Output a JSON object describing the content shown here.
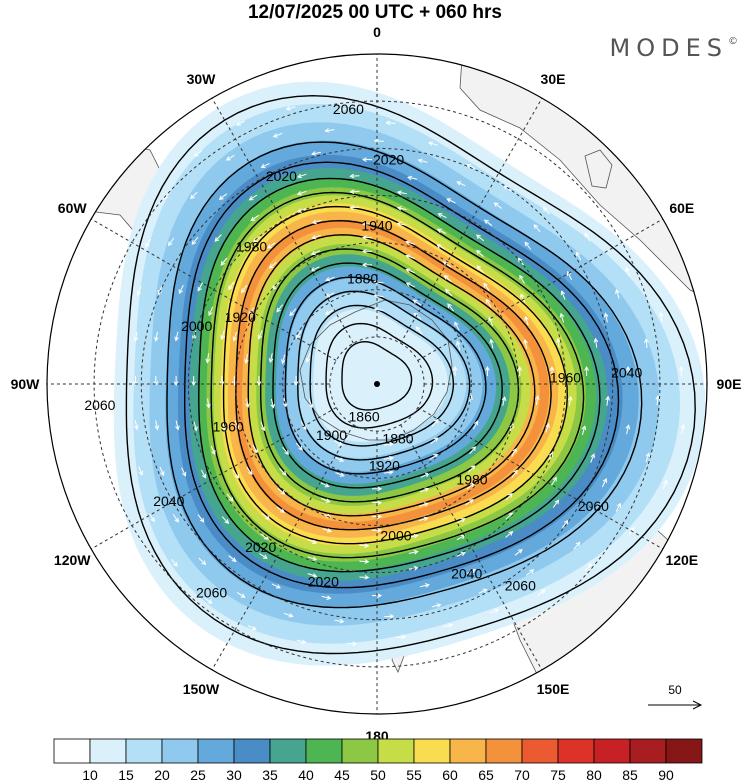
{
  "title": "12/07/2025  00 UTC  + 060 hrs",
  "brand": "MODES",
  "brand_mark": "©",
  "longitude_labels": [
    {
      "text": "0",
      "lon": 0
    },
    {
      "text": "30E",
      "lon": 30
    },
    {
      "text": "60E",
      "lon": 60
    },
    {
      "text": "90E",
      "lon": 90
    },
    {
      "text": "120E",
      "lon": 120
    },
    {
      "text": "150E",
      "lon": 150
    },
    {
      "text": "180",
      "lon": 180
    },
    {
      "text": "150W",
      "lon": -150
    },
    {
      "text": "120W",
      "lon": -120
    },
    {
      "text": "90W",
      "lon": -90
    },
    {
      "text": "60W",
      "lon": -60
    },
    {
      "text": "30W",
      "lon": -30
    }
  ],
  "contour_labels": [
    {
      "text": "2060",
      "lon": -6,
      "lat": -32
    },
    {
      "text": "2020",
      "lon": -25,
      "lat": -42
    },
    {
      "text": "2020",
      "lon": 3,
      "lat": -43
    },
    {
      "text": "1940",
      "lon": 0,
      "lat": -57
    },
    {
      "text": "1980",
      "lon": -43,
      "lat": -51
    },
    {
      "text": "1880",
      "lon": -8,
      "lat": -68
    },
    {
      "text": "2000",
      "lon": -73,
      "lat": -50
    },
    {
      "text": "1920",
      "lon": -65,
      "lat": -58
    },
    {
      "text": "1960",
      "lon": 89,
      "lat": -50
    },
    {
      "text": "2040",
      "lon": 88,
      "lat": -37
    },
    {
      "text": "2060",
      "lon": -95,
      "lat": -31
    },
    {
      "text": "1860",
      "lon": -160,
      "lat": -82
    },
    {
      "text": "1880",
      "lon": 160,
      "lat": -77
    },
    {
      "text": "1960",
      "lon": -107,
      "lat": -57
    },
    {
      "text": "1900",
      "lon": -140,
      "lat": -75
    },
    {
      "text": "1920",
      "lon": 175,
      "lat": -72
    },
    {
      "text": "2040",
      "lon": -120,
      "lat": -39
    },
    {
      "text": "1980",
      "lon": 136,
      "lat": -61
    },
    {
      "text": "2020",
      "lon": -145,
      "lat": -47
    },
    {
      "text": "2000",
      "lon": 173,
      "lat": -57
    },
    {
      "text": "2020",
      "lon": -165,
      "lat": -46
    },
    {
      "text": "2060",
      "lon": 120,
      "lat": -37
    },
    {
      "text": "2040",
      "lon": 155,
      "lat": -45
    },
    {
      "text": "2060",
      "lon": 145,
      "lat": -37
    },
    {
      "text": "2060",
      "lon": -142,
      "lat": -33
    }
  ],
  "colorbar": {
    "ticks": [
      "10",
      "15",
      "20",
      "25",
      "30",
      "35",
      "40",
      "45",
      "50",
      "55",
      "60",
      "65",
      "70",
      "75",
      "80",
      "85",
      "90"
    ],
    "colors": [
      "#ffffff",
      "#daf0fb",
      "#b3e0f6",
      "#8fcaee",
      "#63a9dc",
      "#4a8cc6",
      "#45a58e",
      "#4db653",
      "#8dc844",
      "#c6dd48",
      "#f9dc4f",
      "#f7b54a",
      "#f4913b",
      "#eb5a30",
      "#dd3228",
      "#c72125",
      "#a81d20",
      "#871616"
    ]
  },
  "wind_reference": {
    "label": "50"
  },
  "colors": {
    "land": "#f2f2f2",
    "coast": "#555555",
    "contour": "#000000",
    "vector": "#ffffff"
  }
}
